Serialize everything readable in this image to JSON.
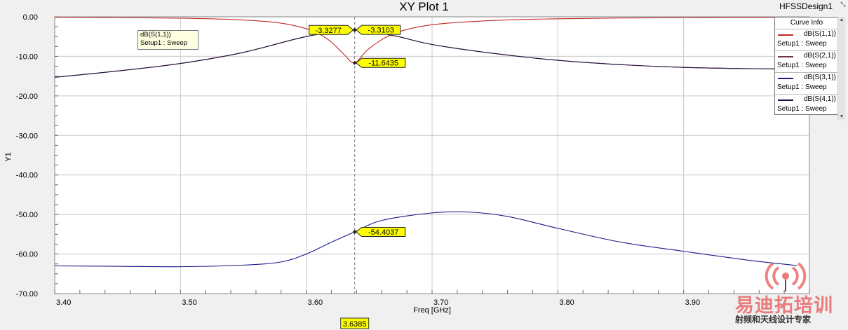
{
  "window": {
    "title": "XY Plot 1",
    "design_name": "HFSSDesign1",
    "resize_grip": "⤡"
  },
  "chart_data": {
    "type": "line",
    "title": "XY Plot 1",
    "xlabel": "Freq [GHz]",
    "ylabel": "Y1",
    "xlim": [
      3.4,
      4.0
    ],
    "ylim": [
      -70,
      0
    ],
    "x_ticks": [
      "3.40",
      "3.50",
      "3.60",
      "3.70",
      "3.80",
      "3.90"
    ],
    "y_ticks": [
      "0.00",
      "-10.00",
      "-20.00",
      "-30.00",
      "-40.00",
      "-50.00",
      "-60.00",
      "-70.00"
    ],
    "grid": true,
    "legend_position": "top-right",
    "series": [
      {
        "name": "dB(S(1,1))",
        "setup": "Setup1 : Sweep",
        "color": "#c02828",
        "x": [
          3.4,
          3.45,
          3.5,
          3.55,
          3.58,
          3.6,
          3.61,
          3.62,
          3.63,
          3.6385,
          3.65,
          3.67,
          3.7,
          3.75,
          3.8,
          3.85,
          3.9,
          3.95,
          3.99
        ],
        "y": [
          -0.1,
          -0.2,
          -0.35,
          -0.8,
          -1.6,
          -3.0,
          -4.3,
          -6.4,
          -9.5,
          -11.64,
          -8.0,
          -4.2,
          -2.0,
          -0.9,
          -0.5,
          -0.3,
          -0.2,
          -0.15,
          -0.1
        ]
      },
      {
        "name": "dB(S(2,1))",
        "setup": "Setup1 : Sweep",
        "color": "#7a3050",
        "x": [
          3.4,
          3.45,
          3.5,
          3.55,
          3.6,
          3.6385,
          3.67,
          3.7,
          3.75,
          3.8,
          3.85,
          3.9,
          3.95,
          3.99
        ],
        "y": [
          -15.3,
          -13.7,
          -11.8,
          -9.0,
          -5.0,
          -3.33,
          -4.8,
          -7.0,
          -9.3,
          -11.0,
          -12.1,
          -12.8,
          -13.1,
          -13.2
        ]
      },
      {
        "name": "dB(S(3,1))",
        "setup": "Setup1 : Sweep",
        "color": "#1a1a8a",
        "x": [
          3.4,
          3.45,
          3.5,
          3.55,
          3.58,
          3.6,
          3.62,
          3.6385,
          3.66,
          3.7,
          3.73,
          3.76,
          3.8,
          3.85,
          3.9,
          3.95,
          3.99
        ],
        "y": [
          -63.0,
          -63.1,
          -63.2,
          -62.8,
          -62.0,
          -60.0,
          -57.0,
          -54.4,
          -51.5,
          -49.6,
          -49.4,
          -50.5,
          -53.5,
          -57.0,
          -59.3,
          -61.5,
          -62.9
        ]
      },
      {
        "name": "dB(S(4,1))",
        "setup": "Setup1 : Sweep",
        "color": "#20103a",
        "x": [
          3.4,
          3.45,
          3.5,
          3.55,
          3.6,
          3.6385,
          3.67,
          3.7,
          3.75,
          3.8,
          3.85,
          3.9,
          3.95,
          3.99
        ],
        "y": [
          -15.3,
          -13.7,
          -11.8,
          -9.0,
          -5.0,
          -3.31,
          -4.8,
          -7.0,
          -9.3,
          -11.0,
          -12.1,
          -12.8,
          -13.1,
          -13.2
        ]
      }
    ],
    "marker_x": 3.6385,
    "marker_x_label": "3.6385",
    "markers": [
      {
        "label": "-3.3277",
        "x": 3.6385,
        "y": -3.3277,
        "side": "left"
      },
      {
        "label": "-3.3103",
        "x": 3.6385,
        "y": -3.3103,
        "side": "right"
      },
      {
        "label": "-11.6435",
        "x": 3.6385,
        "y": -11.6435,
        "side": "right"
      },
      {
        "label": "-54.4037",
        "x": 3.6385,
        "y": -54.4037,
        "side": "right"
      }
    ]
  },
  "legend": {
    "title": "Curve Info",
    "entries": [
      {
        "name": "dB(S(1,1))",
        "setup": "Setup1 : Sweep",
        "color": "#c02828"
      },
      {
        "name": "dB(S(2,1))",
        "setup": "Setup1 : Sweep",
        "color": "#7a3050"
      },
      {
        "name": "dB(S(3,1))",
        "setup": "Setup1 : Sweep",
        "color": "#1a1a8a"
      },
      {
        "name": "dB(S(4,1))",
        "setup": "Setup1 : Sweep",
        "color": "#20103a"
      }
    ],
    "scroll_up": "▲",
    "scroll_down": "▼"
  },
  "note": {
    "line1": "dB(S(1,1))",
    "line2": "Setup1 : Sweep"
  },
  "watermark": {
    "title": "易迪拓培训",
    "subtitle": "射频和天线设计专家"
  }
}
